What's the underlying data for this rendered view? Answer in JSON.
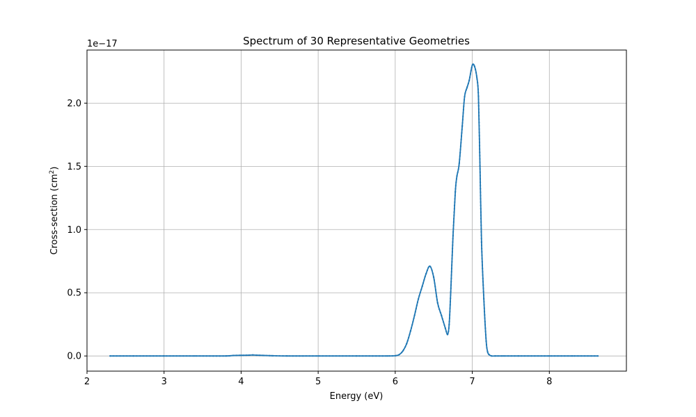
{
  "chart_data": {
    "type": "line",
    "title": "Spectrum of 30 Representative Geometries",
    "xlabel": "Energy (eV)",
    "ylabel_prefix": "Cross-section (cm",
    "ylabel_sup": "2",
    "ylabel_suffix": ")",
    "y_offset_label": "1e−17",
    "xlim": [
      2.0,
      9.0
    ],
    "ylim": [
      -0.12,
      2.42
    ],
    "x_ticks": [
      2,
      3,
      4,
      5,
      6,
      7,
      8
    ],
    "x_tick_labels": [
      "2",
      "3",
      "4",
      "5",
      "6",
      "7",
      "8"
    ],
    "y_ticks": [
      0.0,
      0.5,
      1.0,
      1.5,
      2.0
    ],
    "y_tick_labels": [
      "0.0",
      "0.5",
      "1.0",
      "1.5",
      "2.0"
    ],
    "grid": true,
    "line_color": "#1f77b4",
    "series": [
      {
        "x": [
          2.3,
          2.6,
          3.0,
          3.4,
          3.8,
          3.9,
          4.0,
          4.1,
          4.15,
          4.2,
          4.3,
          4.4,
          4.6,
          5.0,
          5.5,
          5.9,
          6.0,
          6.05,
          6.1,
          6.15,
          6.2,
          6.25,
          6.3,
          6.35,
          6.4,
          6.45,
          6.5,
          6.55,
          6.6,
          6.65,
          6.68,
          6.7,
          6.72,
          6.75,
          6.78,
          6.8,
          6.83,
          6.87,
          6.9,
          6.93,
          6.96,
          7.0,
          7.03,
          7.06,
          7.08,
          7.1,
          7.12,
          7.15,
          7.18,
          7.2,
          7.22,
          7.25,
          7.3,
          7.4,
          7.6,
          8.0,
          8.3,
          8.63
        ],
        "y": [
          0.0,
          0.0,
          0.0,
          0.0,
          0.0,
          0.004,
          0.005,
          0.006,
          0.008,
          0.006,
          0.004,
          0.002,
          0.0,
          0.0,
          0.0,
          0.0,
          0.002,
          0.01,
          0.04,
          0.1,
          0.2,
          0.32,
          0.45,
          0.55,
          0.65,
          0.71,
          0.62,
          0.42,
          0.32,
          0.22,
          0.17,
          0.25,
          0.5,
          0.95,
          1.3,
          1.42,
          1.52,
          1.82,
          2.05,
          2.12,
          2.18,
          2.3,
          2.29,
          2.2,
          2.05,
          1.5,
          0.9,
          0.45,
          0.12,
          0.03,
          0.01,
          0.0,
          0.0,
          0.0,
          0.0,
          0.0,
          0.0,
          0.0
        ]
      }
    ]
  }
}
